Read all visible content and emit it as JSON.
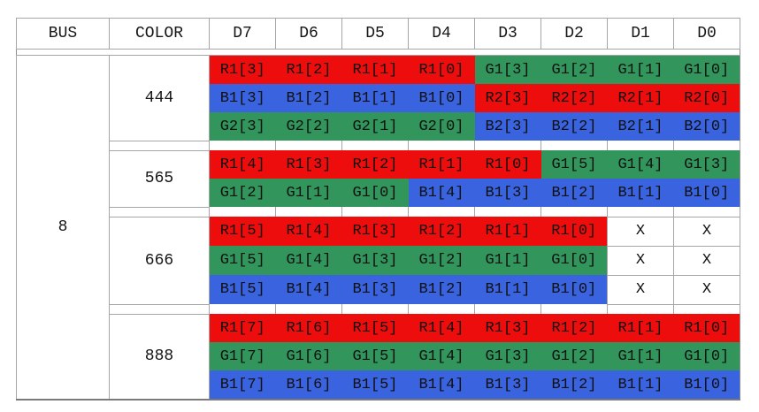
{
  "header": {
    "bus": "BUS",
    "color": "COLOR",
    "bits": [
      "D7",
      "D6",
      "D5",
      "D4",
      "D3",
      "D2",
      "D1",
      "D0"
    ]
  },
  "bus_value": "8",
  "colors": {
    "red": "#ee0d0d",
    "green": "#31955c",
    "blue": "#3a64df",
    "white": "#ffffff",
    "gridline": "#a6a6a6"
  },
  "groups": [
    {
      "color_label": "444",
      "rows": [
        [
          {
            "t": "R1[3]",
            "c": "red"
          },
          {
            "t": "R1[2]",
            "c": "red"
          },
          {
            "t": "R1[1]",
            "c": "red"
          },
          {
            "t": "R1[0]",
            "c": "red"
          },
          {
            "t": "G1[3]",
            "c": "green"
          },
          {
            "t": "G1[2]",
            "c": "green"
          },
          {
            "t": "G1[1]",
            "c": "green"
          },
          {
            "t": "G1[0]",
            "c": "green"
          }
        ],
        [
          {
            "t": "B1[3]",
            "c": "blue"
          },
          {
            "t": "B1[2]",
            "c": "blue"
          },
          {
            "t": "B1[1]",
            "c": "blue"
          },
          {
            "t": "B1[0]",
            "c": "blue"
          },
          {
            "t": "R2[3]",
            "c": "red"
          },
          {
            "t": "R2[2]",
            "c": "red"
          },
          {
            "t": "R2[1]",
            "c": "red"
          },
          {
            "t": "R2[0]",
            "c": "red"
          }
        ],
        [
          {
            "t": "G2[3]",
            "c": "green"
          },
          {
            "t": "G2[2]",
            "c": "green"
          },
          {
            "t": "G2[1]",
            "c": "green"
          },
          {
            "t": "G2[0]",
            "c": "green"
          },
          {
            "t": "B2[3]",
            "c": "blue"
          },
          {
            "t": "B2[2]",
            "c": "blue"
          },
          {
            "t": "B2[1]",
            "c": "blue"
          },
          {
            "t": "B2[0]",
            "c": "blue"
          }
        ]
      ]
    },
    {
      "color_label": "565",
      "rows": [
        [
          {
            "t": "R1[4]",
            "c": "red"
          },
          {
            "t": "R1[3]",
            "c": "red"
          },
          {
            "t": "R1[2]",
            "c": "red"
          },
          {
            "t": "R1[1]",
            "c": "red"
          },
          {
            "t": "R1[0]",
            "c": "red"
          },
          {
            "t": "G1[5]",
            "c": "green"
          },
          {
            "t": "G1[4]",
            "c": "green"
          },
          {
            "t": "G1[3]",
            "c": "green"
          }
        ],
        [
          {
            "t": "G1[2]",
            "c": "green"
          },
          {
            "t": "G1[1]",
            "c": "green"
          },
          {
            "t": "G1[0]",
            "c": "green"
          },
          {
            "t": "B1[4]",
            "c": "blue"
          },
          {
            "t": "B1[3]",
            "c": "blue"
          },
          {
            "t": "B1[2]",
            "c": "blue"
          },
          {
            "t": "B1[1]",
            "c": "blue"
          },
          {
            "t": "B1[0]",
            "c": "blue"
          }
        ]
      ]
    },
    {
      "color_label": "666",
      "rows": [
        [
          {
            "t": "R1[5]",
            "c": "red"
          },
          {
            "t": "R1[4]",
            "c": "red"
          },
          {
            "t": "R1[3]",
            "c": "red"
          },
          {
            "t": "R1[2]",
            "c": "red"
          },
          {
            "t": "R1[1]",
            "c": "red"
          },
          {
            "t": "R1[0]",
            "c": "red"
          },
          {
            "t": "X",
            "c": "white"
          },
          {
            "t": "X",
            "c": "white"
          }
        ],
        [
          {
            "t": "G1[5]",
            "c": "green"
          },
          {
            "t": "G1[4]",
            "c": "green"
          },
          {
            "t": "G1[3]",
            "c": "green"
          },
          {
            "t": "G1[2]",
            "c": "green"
          },
          {
            "t": "G1[1]",
            "c": "green"
          },
          {
            "t": "G1[0]",
            "c": "green"
          },
          {
            "t": "X",
            "c": "white"
          },
          {
            "t": "X",
            "c": "white"
          }
        ],
        [
          {
            "t": "B1[5]",
            "c": "blue"
          },
          {
            "t": "B1[4]",
            "c": "blue"
          },
          {
            "t": "B1[3]",
            "c": "blue"
          },
          {
            "t": "B1[2]",
            "c": "blue"
          },
          {
            "t": "B1[1]",
            "c": "blue"
          },
          {
            "t": "B1[0]",
            "c": "blue"
          },
          {
            "t": "X",
            "c": "white"
          },
          {
            "t": "X",
            "c": "white"
          }
        ]
      ]
    },
    {
      "color_label": "888",
      "rows": [
        [
          {
            "t": "R1[7]",
            "c": "red"
          },
          {
            "t": "R1[6]",
            "c": "red"
          },
          {
            "t": "R1[5]",
            "c": "red"
          },
          {
            "t": "R1[4]",
            "c": "red"
          },
          {
            "t": "R1[3]",
            "c": "red"
          },
          {
            "t": "R1[2]",
            "c": "red"
          },
          {
            "t": "R1[1]",
            "c": "red"
          },
          {
            "t": "R1[0]",
            "c": "red"
          }
        ],
        [
          {
            "t": "G1[7]",
            "c": "green"
          },
          {
            "t": "G1[6]",
            "c": "green"
          },
          {
            "t": "G1[5]",
            "c": "green"
          },
          {
            "t": "G1[4]",
            "c": "green"
          },
          {
            "t": "G1[3]",
            "c": "green"
          },
          {
            "t": "G1[2]",
            "c": "green"
          },
          {
            "t": "G1[1]",
            "c": "green"
          },
          {
            "t": "G1[0]",
            "c": "green"
          }
        ],
        [
          {
            "t": "B1[7]",
            "c": "blue"
          },
          {
            "t": "B1[6]",
            "c": "blue"
          },
          {
            "t": "B1[5]",
            "c": "blue"
          },
          {
            "t": "B1[4]",
            "c": "blue"
          },
          {
            "t": "B1[3]",
            "c": "blue"
          },
          {
            "t": "B1[2]",
            "c": "blue"
          },
          {
            "t": "B1[1]",
            "c": "blue"
          },
          {
            "t": "B1[0]",
            "c": "blue"
          }
        ]
      ]
    }
  ]
}
